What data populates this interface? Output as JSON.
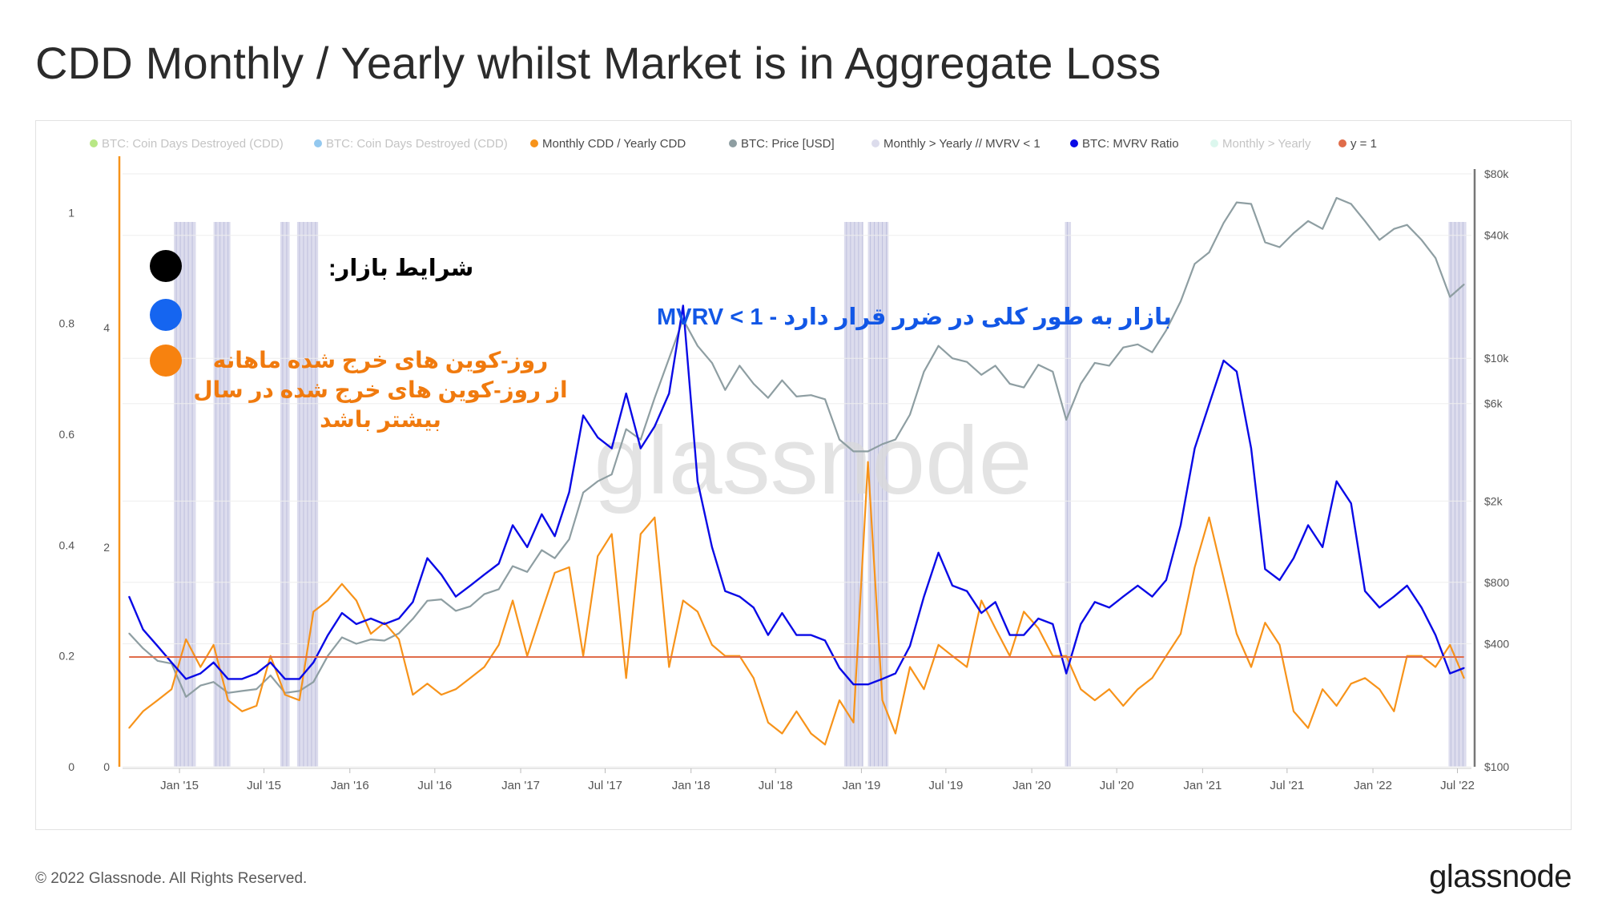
{
  "title": "CDD Monthly / Yearly whilst Market is in Aggregate Loss",
  "footer": {
    "copyright": "© 2022 Glassnode. All Rights Reserved.",
    "brand": "glassnode"
  },
  "watermark": "glassnode",
  "annotations": {
    "market_conditions": "شرایط بازار:",
    "mvrv_condition": "بازار به طور کلی در ضرر قرار دارد - 1 > MVRV",
    "cdd_line1": "روز-کوین های خرج شده ماهانه",
    "cdd_line2": "از روز-کوین های خرج شده در سال",
    "cdd_line3": "بیشتر باشد"
  },
  "colors": {
    "cdd_ratio": "#f7931a",
    "price": "#8e9ea2",
    "mvrv": "#0a0ae6",
    "band": "#d6d6ea",
    "y_eq_1": "#e06c4a",
    "dot_black": "#000000",
    "dot_blue": "#1565f0",
    "dot_orange": "#f7820f"
  },
  "chart_data": {
    "type": "line",
    "title": "CDD Monthly / Yearly whilst Market is in Aggregate Loss",
    "legend": [
      {
        "label": "BTC: Coin Days Destroyed (CDD)",
        "color": "#7ed321",
        "faded": true
      },
      {
        "label": "BTC: Coin Days Destroyed (CDD)",
        "color": "#3b9ae1",
        "faded": true
      },
      {
        "label": "Monthly CDD / Yearly CDD",
        "color": "#f7931a",
        "faded": false
      },
      {
        "label": "BTC: Price [USD]",
        "color": "#8e9ea2",
        "faded": false
      },
      {
        "label": "Monthly > Yearly // MVRV < 1",
        "color": "#dcdcec",
        "faded": false
      },
      {
        "label": "BTC: MVRV Ratio",
        "color": "#0a0ae6",
        "faded": false
      },
      {
        "label": "Monthly > Yearly",
        "color": "#bff0e0",
        "faded": true
      },
      {
        "label": "y = 1",
        "color": "#e06c4a",
        "faded": false
      }
    ],
    "legend_position": "top",
    "x_ticks": [
      "Jan '15",
      "Jul '15",
      "Jan '16",
      "Jul '16",
      "Jan '17",
      "Jul '17",
      "Jan '18",
      "Jul '18",
      "Jan '19",
      "Jul '19",
      "Jan '20",
      "Jul '20",
      "Jan '21",
      "Jul '21",
      "Jan '22",
      "Jul '22"
    ],
    "x_range": [
      "2014-09",
      "2022-07"
    ],
    "axis_left_outer": {
      "ticks": [
        "0",
        "0.2",
        "0.4",
        "0.6",
        "0.8",
        "1"
      ],
      "ylim": [
        0,
        1.07
      ]
    },
    "axis_left_inner": {
      "ticks": [
        "0",
        "2",
        "4"
      ],
      "ylim": [
        0,
        5.4
      ]
    },
    "axis_right": {
      "scale": "log",
      "ticks": [
        "$100",
        "$400",
        "$800",
        "$2k",
        "$6k",
        "$10k",
        "$40k",
        "$80k"
      ],
      "ylim": [
        100,
        80000
      ]
    },
    "y_eq_1_level": 1,
    "shaded_bands": [
      [
        "2014-12-20",
        "2015-02-05"
      ],
      [
        "2015-03-15",
        "2015-04-20"
      ],
      [
        "2015-08-05",
        "2015-08-25"
      ],
      [
        "2015-09-10",
        "2015-10-25"
      ],
      [
        "2018-11-25",
        "2019-01-05"
      ],
      [
        "2019-01-15",
        "2019-02-28"
      ],
      [
        "2020-03-12",
        "2020-03-25"
      ],
      [
        "2022-06-12",
        "2022-07-20"
      ]
    ],
    "series": [
      {
        "name": "BTC: Price [USD]",
        "axis": "right",
        "x": [
          "2014-09",
          "2014-10",
          "2014-11",
          "2014-12",
          "2015-01",
          "2015-02",
          "2015-03",
          "2015-04",
          "2015-05",
          "2015-06",
          "2015-07",
          "2015-08",
          "2015-09",
          "2015-10",
          "2015-11",
          "2015-12",
          "2016-01",
          "2016-02",
          "2016-03",
          "2016-04",
          "2016-05",
          "2016-06",
          "2016-07",
          "2016-08",
          "2016-09",
          "2016-10",
          "2016-11",
          "2016-12",
          "2017-01",
          "2017-02",
          "2017-03",
          "2017-04",
          "2017-05",
          "2017-06",
          "2017-07",
          "2017-08",
          "2017-09",
          "2017-10",
          "2017-11",
          "2017-12",
          "2018-01",
          "2018-02",
          "2018-03",
          "2018-04",
          "2018-05",
          "2018-06",
          "2018-07",
          "2018-08",
          "2018-09",
          "2018-10",
          "2018-11",
          "2018-12",
          "2019-01",
          "2019-02",
          "2019-03",
          "2019-04",
          "2019-05",
          "2019-06",
          "2019-07",
          "2019-08",
          "2019-09",
          "2019-10",
          "2019-11",
          "2019-12",
          "2020-01",
          "2020-02",
          "2020-03",
          "2020-04",
          "2020-05",
          "2020-06",
          "2020-07",
          "2020-08",
          "2020-09",
          "2020-10",
          "2020-11",
          "2020-12",
          "2021-01",
          "2021-02",
          "2021-03",
          "2021-04",
          "2021-05",
          "2021-06",
          "2021-07",
          "2021-08",
          "2021-09",
          "2021-10",
          "2021-11",
          "2021-12",
          "2022-01",
          "2022-02",
          "2022-03",
          "2022-04",
          "2022-05",
          "2022-06",
          "2022-07"
        ],
        "values": [
          450,
          380,
          330,
          320,
          220,
          250,
          260,
          230,
          235,
          240,
          280,
          230,
          235,
          260,
          350,
          430,
          400,
          420,
          415,
          450,
          530,
          650,
          660,
          580,
          610,
          700,
          740,
          960,
          900,
          1150,
          1050,
          1300,
          2200,
          2500,
          2700,
          4500,
          4000,
          6400,
          10000,
          15500,
          11500,
          9500,
          7000,
          9200,
          7500,
          6400,
          7800,
          6500,
          6600,
          6300,
          4000,
          3500,
          3500,
          3800,
          4000,
          5300,
          8600,
          11500,
          10000,
          9600,
          8300,
          9200,
          7500,
          7200,
          9300,
          8600,
          5000,
          7500,
          9500,
          9200,
          11300,
          11700,
          10700,
          13700,
          19000,
          29000,
          33000,
          46000,
          58000,
          57000,
          37000,
          35000,
          41000,
          47000,
          43000,
          61000,
          57000,
          47000,
          38000,
          43000,
          45000,
          38000,
          31000,
          20000,
          23000
        ]
      },
      {
        "name": "BTC: MVRV Ratio",
        "axis": "left_inner",
        "x": [
          "2014-09",
          "2014-10",
          "2014-11",
          "2014-12",
          "2015-01",
          "2015-02",
          "2015-03",
          "2015-04",
          "2015-05",
          "2015-06",
          "2015-07",
          "2015-08",
          "2015-09",
          "2015-10",
          "2015-11",
          "2015-12",
          "2016-01",
          "2016-02",
          "2016-03",
          "2016-04",
          "2016-05",
          "2016-06",
          "2016-07",
          "2016-08",
          "2016-09",
          "2016-10",
          "2016-11",
          "2016-12",
          "2017-01",
          "2017-02",
          "2017-03",
          "2017-04",
          "2017-05",
          "2017-06",
          "2017-07",
          "2017-08",
          "2017-09",
          "2017-10",
          "2017-11",
          "2017-12",
          "2018-01",
          "2018-02",
          "2018-03",
          "2018-04",
          "2018-05",
          "2018-06",
          "2018-07",
          "2018-08",
          "2018-09",
          "2018-10",
          "2018-11",
          "2018-12",
          "2019-01",
          "2019-02",
          "2019-03",
          "2019-04",
          "2019-05",
          "2019-06",
          "2019-07",
          "2019-08",
          "2019-09",
          "2019-10",
          "2019-11",
          "2019-12",
          "2020-01",
          "2020-02",
          "2020-03",
          "2020-04",
          "2020-05",
          "2020-06",
          "2020-07",
          "2020-08",
          "2020-09",
          "2020-10",
          "2020-11",
          "2020-12",
          "2021-01",
          "2021-02",
          "2021-03",
          "2021-04",
          "2021-05",
          "2021-06",
          "2021-07",
          "2021-08",
          "2021-09",
          "2021-10",
          "2021-11",
          "2021-12",
          "2022-01",
          "2022-02",
          "2022-03",
          "2022-04",
          "2022-05",
          "2022-06",
          "2022-07"
        ],
        "values": [
          1.55,
          1.25,
          1.1,
          0.95,
          0.8,
          0.85,
          0.95,
          0.8,
          0.8,
          0.85,
          0.95,
          0.8,
          0.8,
          0.95,
          1.2,
          1.4,
          1.3,
          1.35,
          1.3,
          1.35,
          1.5,
          1.9,
          1.75,
          1.55,
          1.65,
          1.75,
          1.85,
          2.2,
          2.0,
          2.3,
          2.1,
          2.5,
          3.2,
          3.0,
          2.9,
          3.4,
          2.9,
          3.1,
          3.4,
          4.2,
          2.6,
          2.0,
          1.6,
          1.55,
          1.45,
          1.2,
          1.4,
          1.2,
          1.2,
          1.15,
          0.9,
          0.75,
          0.75,
          0.8,
          0.85,
          1.1,
          1.55,
          1.95,
          1.65,
          1.6,
          1.4,
          1.5,
          1.2,
          1.2,
          1.35,
          1.3,
          0.85,
          1.3,
          1.5,
          1.45,
          1.55,
          1.65,
          1.55,
          1.7,
          2.2,
          2.9,
          3.3,
          3.7,
          3.6,
          2.9,
          1.8,
          1.7,
          1.9,
          2.2,
          2.0,
          2.6,
          2.4,
          1.6,
          1.45,
          1.55,
          1.65,
          1.45,
          1.2,
          0.85,
          0.9
        ]
      },
      {
        "name": "Monthly CDD / Yearly CDD",
        "axis": "left_outer",
        "x": [
          "2014-09",
          "2014-10",
          "2014-11",
          "2014-12",
          "2015-01",
          "2015-02",
          "2015-03",
          "2015-04",
          "2015-05",
          "2015-06",
          "2015-07",
          "2015-08",
          "2015-09",
          "2015-10",
          "2015-11",
          "2015-12",
          "2016-01",
          "2016-02",
          "2016-03",
          "2016-04",
          "2016-05",
          "2016-06",
          "2016-07",
          "2016-08",
          "2016-09",
          "2016-10",
          "2016-11",
          "2016-12",
          "2017-01",
          "2017-02",
          "2017-03",
          "2017-04",
          "2017-05",
          "2017-06",
          "2017-07",
          "2017-08",
          "2017-09",
          "2017-10",
          "2017-11",
          "2017-12",
          "2018-01",
          "2018-02",
          "2018-03",
          "2018-04",
          "2018-05",
          "2018-06",
          "2018-07",
          "2018-08",
          "2018-09",
          "2018-10",
          "2018-11",
          "2018-12",
          "2019-01",
          "2019-02",
          "2019-03",
          "2019-04",
          "2019-05",
          "2019-06",
          "2019-07",
          "2019-08",
          "2019-09",
          "2019-10",
          "2019-11",
          "2019-12",
          "2020-01",
          "2020-02",
          "2020-03",
          "2020-04",
          "2020-05",
          "2020-06",
          "2020-07",
          "2020-08",
          "2020-09",
          "2020-10",
          "2020-11",
          "2020-12",
          "2021-01",
          "2021-02",
          "2021-03",
          "2021-04",
          "2021-05",
          "2021-06",
          "2021-07",
          "2021-08",
          "2021-09",
          "2021-10",
          "2021-11",
          "2021-12",
          "2022-01",
          "2022-02",
          "2022-03",
          "2022-04",
          "2022-05",
          "2022-06",
          "2022-07"
        ],
        "values": [
          0.07,
          0.1,
          0.12,
          0.14,
          0.23,
          0.18,
          0.22,
          0.12,
          0.1,
          0.11,
          0.2,
          0.13,
          0.12,
          0.28,
          0.3,
          0.33,
          0.3,
          0.24,
          0.26,
          0.23,
          0.13,
          0.15,
          0.13,
          0.14,
          0.16,
          0.18,
          0.22,
          0.3,
          0.2,
          0.28,
          0.35,
          0.36,
          0.2,
          0.38,
          0.42,
          0.16,
          0.42,
          0.45,
          0.18,
          0.3,
          0.28,
          0.22,
          0.2,
          0.2,
          0.16,
          0.08,
          0.06,
          0.1,
          0.06,
          0.04,
          0.12,
          0.08,
          0.55,
          0.12,
          0.06,
          0.18,
          0.14,
          0.22,
          0.2,
          0.18,
          0.3,
          0.25,
          0.2,
          0.28,
          0.25,
          0.2,
          0.2,
          0.14,
          0.12,
          0.14,
          0.11,
          0.14,
          0.16,
          0.2,
          0.24,
          0.36,
          0.45,
          0.34,
          0.24,
          0.18,
          0.26,
          0.22,
          0.1,
          0.07,
          0.14,
          0.11,
          0.15,
          0.16,
          0.14,
          0.1,
          0.2,
          0.2,
          0.18,
          0.22,
          0.16
        ]
      },
      {
        "name": "y = 1",
        "axis": "left_inner",
        "x": [
          "2014-09",
          "2022-07"
        ],
        "values": [
          1,
          1
        ]
      }
    ]
  }
}
